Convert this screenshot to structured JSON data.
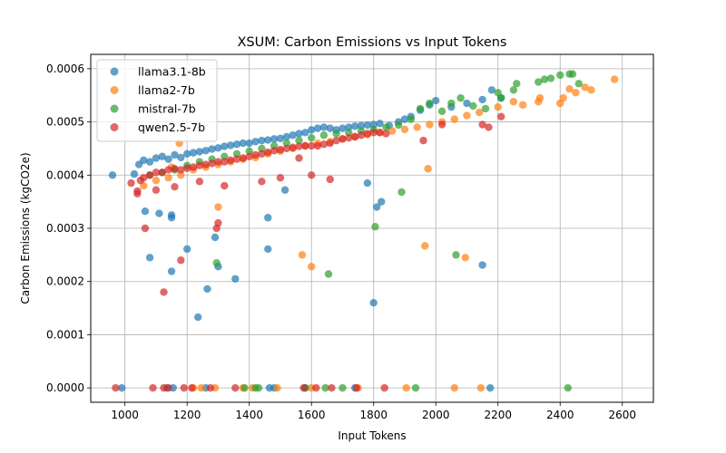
{
  "chart_data": {
    "type": "scatter",
    "title": "XSUM: Carbon Emissions vs Input Tokens",
    "xlabel": "Input Tokens",
    "ylabel": "Carbon Emissions (kgCO2e)",
    "xlim": [
      890,
      2700
    ],
    "ylim": [
      -2.7e-05,
      0.000627
    ],
    "xticks": [
      1000,
      1200,
      1400,
      1600,
      1800,
      2000,
      2200,
      2400,
      2600
    ],
    "xtick_labels": [
      "1000",
      "1200",
      "1400",
      "1600",
      "1800",
      "2000",
      "2200",
      "2400",
      "2600"
    ],
    "yticks": [
      0,
      0.0001,
      0.0002,
      0.0003,
      0.0004,
      0.0005,
      0.0006
    ],
    "ytick_labels": [
      "0.0000",
      "0.0001",
      "0.0002",
      "0.0003",
      "0.0004",
      "0.0005",
      "0.0006"
    ],
    "grid": true,
    "legend_position": "top-left",
    "series": [
      {
        "name": "llama3.1-8b",
        "color": "#1f77b4",
        "points": [
          [
            960,
            0.0004
          ],
          [
            1030,
            0.000402
          ],
          [
            1045,
            0.00042
          ],
          [
            1060,
            0.000428
          ],
          [
            1080,
            0.000425
          ],
          [
            1100,
            0.000432
          ],
          [
            1120,
            0.000435
          ],
          [
            1140,
            0.00043
          ],
          [
            1160,
            0.000438
          ],
          [
            1180,
            0.000433
          ],
          [
            1200,
            0.00044
          ],
          [
            1220,
            0.000442
          ],
          [
            1240,
            0.000444
          ],
          [
            1260,
            0.000446
          ],
          [
            1280,
            0.000449
          ],
          [
            1300,
            0.000451
          ],
          [
            1320,
            0.000454
          ],
          [
            1340,
            0.000456
          ],
          [
            1360,
            0.000458
          ],
          [
            1380,
            0.00046
          ],
          [
            1400,
            0.00046
          ],
          [
            1420,
            0.000463
          ],
          [
            1440,
            0.000465
          ],
          [
            1460,
            0.000466
          ],
          [
            1480,
            0.000468
          ],
          [
            1500,
            0.000469
          ],
          [
            1520,
            0.000472
          ],
          [
            1540,
            0.000475
          ],
          [
            1560,
            0.000478
          ],
          [
            1580,
            0.00048
          ],
          [
            1600,
            0.000485
          ],
          [
            1620,
            0.000488
          ],
          [
            1640,
            0.00049
          ],
          [
            1660,
            0.000488
          ],
          [
            1680,
            0.000485
          ],
          [
            1700,
            0.000488
          ],
          [
            1720,
            0.00049
          ],
          [
            1740,
            0.000492
          ],
          [
            1760,
            0.000493
          ],
          [
            1780,
            0.000494
          ],
          [
            1800,
            0.000495
          ],
          [
            1820,
            0.000497
          ],
          [
            1850,
            0.000493
          ],
          [
            1880,
            0.0005
          ],
          [
            1900,
            0.000505
          ],
          [
            1920,
            0.00051
          ],
          [
            1950,
            0.000522
          ],
          [
            1980,
            0.000532
          ],
          [
            2000,
            0.00054
          ],
          [
            2050,
            0.000528
          ],
          [
            2100,
            0.000535
          ],
          [
            2150,
            0.000542
          ],
          [
            2180,
            0.00056
          ],
          [
            2210,
            0.000545
          ],
          [
            1065,
            0.000332
          ],
          [
            1110,
            0.000328
          ],
          [
            1150,
            0.000325
          ],
          [
            1150,
            0.00032
          ],
          [
            1200,
            0.000261
          ],
          [
            1080,
            0.000245
          ],
          [
            1150,
            0.000219
          ],
          [
            1290,
            0.000283
          ],
          [
            1300,
            0.000228
          ],
          [
            1265,
            0.000186
          ],
          [
            1355,
            0.000205
          ],
          [
            1235,
            0.000133
          ],
          [
            1460,
            0.00032
          ],
          [
            1460,
            0.000261
          ],
          [
            1515,
            0.000372
          ],
          [
            1780,
            0.000385
          ],
          [
            1810,
            0.00034
          ],
          [
            1825,
            0.00035
          ],
          [
            1800,
            0.00016
          ],
          [
            2150,
            0.000231
          ],
          [
            990,
            0.0
          ],
          [
            1135,
            0.0
          ],
          [
            1155,
            0.0
          ],
          [
            1260,
            0.0
          ],
          [
            1465,
            0.0
          ],
          [
            1480,
            0.0
          ],
          [
            1580,
            0.0
          ],
          [
            1740,
            0.0
          ],
          [
            2175,
            0.0
          ]
        ]
      },
      {
        "name": "llama2-7b",
        "color": "#ff7f0e",
        "points": [
          [
            1060,
            0.00038
          ],
          [
            1100,
            0.00039
          ],
          [
            1140,
            0.000395
          ],
          [
            1180,
            0.0004
          ],
          [
            1220,
            0.00041
          ],
          [
            1260,
            0.000415
          ],
          [
            1300,
            0.00042
          ],
          [
            1340,
            0.000425
          ],
          [
            1380,
            0.00043
          ],
          [
            1420,
            0.000433
          ],
          [
            1460,
            0.00044
          ],
          [
            1500,
            0.000445
          ],
          [
            1540,
            0.00045
          ],
          [
            1580,
            0.000455
          ],
          [
            1620,
            0.00046
          ],
          [
            1660,
            0.000463
          ],
          [
            1700,
            0.000468
          ],
          [
            1740,
            0.000472
          ],
          [
            1780,
            0.000476
          ],
          [
            1820,
            0.00048
          ],
          [
            1860,
            0.000483
          ],
          [
            1900,
            0.000486
          ],
          [
            1940,
            0.00049
          ],
          [
            1980,
            0.000495
          ],
          [
            2020,
            0.0005
          ],
          [
            2060,
            0.000505
          ],
          [
            2100,
            0.000512
          ],
          [
            2140,
            0.000518
          ],
          [
            2200,
            0.000528
          ],
          [
            2250,
            0.000538
          ],
          [
            2280,
            0.000532
          ],
          [
            2330,
            0.000538
          ],
          [
            2335,
            0.000545
          ],
          [
            2400,
            0.000535
          ],
          [
            2410,
            0.000545
          ],
          [
            2430,
            0.000562
          ],
          [
            2450,
            0.000555
          ],
          [
            2480,
            0.000565
          ],
          [
            2500,
            0.00056
          ],
          [
            2575,
            0.00058
          ],
          [
            1175,
            0.00046
          ],
          [
            1150,
            0.000415
          ],
          [
            1300,
            0.00034
          ],
          [
            1975,
            0.000412
          ],
          [
            1570,
            0.00025
          ],
          [
            1600,
            0.000228
          ],
          [
            1965,
            0.000267
          ],
          [
            2095,
            0.000245
          ],
          [
            1220,
            0.0
          ],
          [
            1245,
            0.0
          ],
          [
            1290,
            0.0
          ],
          [
            1380,
            0.0
          ],
          [
            1410,
            0.0
          ],
          [
            1490,
            0.0
          ],
          [
            1600,
            0.0
          ],
          [
            1750,
            0.0
          ],
          [
            1905,
            0.0
          ],
          [
            2060,
            0.0
          ],
          [
            2145,
            0.0
          ]
        ]
      },
      {
        "name": "mistral-7b",
        "color": "#2ca02c",
        "points": [
          [
            1080,
            0.0004
          ],
          [
            1120,
            0.000405
          ],
          [
            1160,
            0.00041
          ],
          [
            1200,
            0.000418
          ],
          [
            1240,
            0.000425
          ],
          [
            1280,
            0.00043
          ],
          [
            1320,
            0.000435
          ],
          [
            1360,
            0.00044
          ],
          [
            1400,
            0.000445
          ],
          [
            1440,
            0.00045
          ],
          [
            1480,
            0.000455
          ],
          [
            1520,
            0.00046
          ],
          [
            1560,
            0.000465
          ],
          [
            1600,
            0.00047
          ],
          [
            1640,
            0.000475
          ],
          [
            1680,
            0.000478
          ],
          [
            1720,
            0.00048
          ],
          [
            1760,
            0.000483
          ],
          [
            1800,
            0.000486
          ],
          [
            1840,
            0.00049
          ],
          [
            1880,
            0.000494
          ],
          [
            1920,
            0.000505
          ],
          [
            1950,
            0.000525
          ],
          [
            1980,
            0.000535
          ],
          [
            2020,
            0.00052
          ],
          [
            2050,
            0.000535
          ],
          [
            2080,
            0.000545
          ],
          [
            2120,
            0.00053
          ],
          [
            2160,
            0.000525
          ],
          [
            2200,
            0.000555
          ],
          [
            2210,
            0.000545
          ],
          [
            2250,
            0.00056
          ],
          [
            2260,
            0.000572
          ],
          [
            2330,
            0.000575
          ],
          [
            2350,
            0.00058
          ],
          [
            2370,
            0.000582
          ],
          [
            2400,
            0.000588
          ],
          [
            2430,
            0.00059
          ],
          [
            2440,
            0.00059
          ],
          [
            2460,
            0.000572
          ],
          [
            1890,
            0.000368
          ],
          [
            1805,
            0.000303
          ],
          [
            1295,
            0.000235
          ],
          [
            1655,
            0.000214
          ],
          [
            2065,
            0.00025
          ],
          [
            1385,
            0.0
          ],
          [
            1420,
            0.0
          ],
          [
            1430,
            0.0
          ],
          [
            1580,
            0.0
          ],
          [
            1645,
            0.0
          ],
          [
            1700,
            0.0
          ],
          [
            1935,
            0.0
          ],
          [
            2425,
            0.0
          ]
        ]
      },
      {
        "name": "qwen2.5-7b",
        "color": "#d62728",
        "points": [
          [
            1020,
            0.000385
          ],
          [
            1040,
            0.00037
          ],
          [
            1050,
            0.00039
          ],
          [
            1060,
            0.000395
          ],
          [
            1080,
            0.0004
          ],
          [
            1100,
            0.000405
          ],
          [
            1120,
            0.000405
          ],
          [
            1140,
            0.00041
          ],
          [
            1160,
            0.000412
          ],
          [
            1180,
            0.00041
          ],
          [
            1200,
            0.000413
          ],
          [
            1220,
            0.000415
          ],
          [
            1240,
            0.000418
          ],
          [
            1260,
            0.00042
          ],
          [
            1280,
            0.000422
          ],
          [
            1300,
            0.000425
          ],
          [
            1320,
            0.000425
          ],
          [
            1340,
            0.000428
          ],
          [
            1360,
            0.00043
          ],
          [
            1380,
            0.000432
          ],
          [
            1400,
            0.000435
          ],
          [
            1420,
            0.000438
          ],
          [
            1440,
            0.00044
          ],
          [
            1460,
            0.000443
          ],
          [
            1480,
            0.000446
          ],
          [
            1500,
            0.000448
          ],
          [
            1520,
            0.00045
          ],
          [
            1540,
            0.000452
          ],
          [
            1560,
            0.000454
          ],
          [
            1580,
            0.000455
          ],
          [
            1600,
            0.000455
          ],
          [
            1620,
            0.000455
          ],
          [
            1640,
            0.000458
          ],
          [
            1660,
            0.00046
          ],
          [
            1680,
            0.000465
          ],
          [
            1700,
            0.000468
          ],
          [
            1720,
            0.00047
          ],
          [
            1740,
            0.000472
          ],
          [
            1760,
            0.000475
          ],
          [
            1780,
            0.000478
          ],
          [
            1800,
            0.00048
          ],
          [
            1820,
            0.00048
          ],
          [
            1840,
            0.000478
          ],
          [
            1960,
            0.000465
          ],
          [
            2020,
            0.000495
          ],
          [
            2150,
            0.000495
          ],
          [
            2170,
            0.00049
          ],
          [
            2210,
            0.00051
          ],
          [
            1040,
            0.000365
          ],
          [
            1100,
            0.000372
          ],
          [
            1160,
            0.000378
          ],
          [
            1240,
            0.000388
          ],
          [
            1320,
            0.00038
          ],
          [
            1440,
            0.000388
          ],
          [
            1500,
            0.000395
          ],
          [
            1560,
            0.000432
          ],
          [
            1600,
            0.0004
          ],
          [
            1660,
            0.000392
          ],
          [
            1300,
            0.00031
          ],
          [
            1295,
            0.0003
          ],
          [
            1065,
            0.0003
          ],
          [
            1180,
            0.00024
          ],
          [
            1125,
            0.00018
          ],
          [
            970,
            0.0
          ],
          [
            1090,
            0.0
          ],
          [
            1125,
            0.0
          ],
          [
            1140,
            0.0
          ],
          [
            1190,
            0.0
          ],
          [
            1215,
            0.0
          ],
          [
            1275,
            0.0
          ],
          [
            1355,
            0.0
          ],
          [
            1575,
            0.0
          ],
          [
            1615,
            0.0
          ],
          [
            1665,
            0.0
          ],
          [
            1745,
            0.0
          ],
          [
            1835,
            0.0
          ]
        ]
      }
    ]
  }
}
